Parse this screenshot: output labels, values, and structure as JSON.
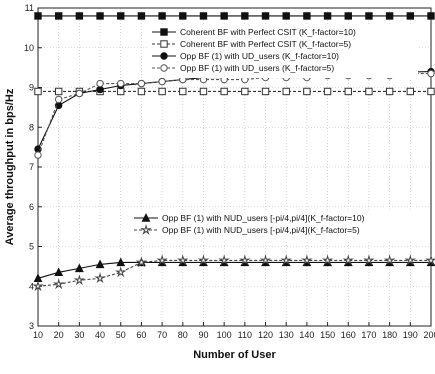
{
  "chart_data": {
    "type": "line",
    "title": "",
    "xlabel": "Number of User",
    "ylabel": "Average throughput in bps/Hz",
    "x": [
      10,
      20,
      30,
      40,
      50,
      60,
      70,
      80,
      90,
      100,
      110,
      120,
      130,
      140,
      150,
      160,
      170,
      180,
      190,
      200
    ],
    "xtick_labels": [
      "10",
      "20",
      "30",
      "40",
      "50",
      "60",
      "70",
      "80",
      "90",
      "100",
      "110",
      "120",
      "130",
      "140",
      "150",
      "160",
      "170",
      "180",
      "190",
      "200"
    ],
    "xlim": [
      10,
      200
    ],
    "ylim": [
      3,
      11
    ],
    "yticks": [
      3,
      4,
      5,
      6,
      7,
      8,
      9,
      10,
      11
    ],
    "grid": true,
    "legend_upper": [
      0,
      1,
      2,
      3
    ],
    "legend_lower": [
      4,
      5
    ],
    "series": [
      {
        "name": "Coherent BF with Perfect CSIT (K_f-factor=10)",
        "color": "#111111",
        "dash": "",
        "marker": "square-filled",
        "values": [
          10.8,
          10.8,
          10.8,
          10.8,
          10.8,
          10.8,
          10.8,
          10.8,
          10.8,
          10.8,
          10.8,
          10.8,
          10.8,
          10.8,
          10.8,
          10.8,
          10.8,
          10.8,
          10.8,
          10.8
        ]
      },
      {
        "name": "Coherent BF with Perfect CSIT (K_f-factor=5)",
        "color": "#333333",
        "dash": "3,2",
        "marker": "square-open",
        "values": [
          8.9,
          8.9,
          8.9,
          8.9,
          8.9,
          8.9,
          8.9,
          8.9,
          8.9,
          8.9,
          8.9,
          8.9,
          8.9,
          8.9,
          8.9,
          8.9,
          8.9,
          8.9,
          8.9,
          8.9
        ]
      },
      {
        "name": "Opp BF (1) with UD_users (K_f-factor=10)",
        "color": "#111111",
        "dash": "",
        "marker": "circle-filled",
        "values": [
          7.45,
          8.55,
          8.85,
          8.95,
          9.05,
          9.1,
          9.15,
          9.2,
          9.25,
          9.25,
          9.3,
          9.3,
          9.32,
          9.33,
          9.35,
          9.36,
          9.37,
          9.38,
          9.39,
          9.4
        ]
      },
      {
        "name": "Opp BF (1) with UD_users (K_f-factor=5)",
        "color": "#555555",
        "dash": "3,2",
        "marker": "circle-open",
        "values": [
          7.3,
          8.7,
          8.85,
          9.1,
          9.1,
          9.1,
          9.15,
          9.2,
          9.2,
          9.2,
          9.2,
          9.25,
          9.25,
          9.25,
          9.3,
          9.3,
          9.3,
          9.3,
          9.35,
          9.35
        ]
      },
      {
        "name": "Opp BF (1) with NUD_users [-pi/4,pi/4](K_f-factor=10)",
        "color": "#111111",
        "dash": "",
        "marker": "triangle-filled",
        "values": [
          4.2,
          4.35,
          4.45,
          4.55,
          4.6,
          4.6,
          4.6,
          4.6,
          4.6,
          4.6,
          4.6,
          4.6,
          4.6,
          4.6,
          4.6,
          4.6,
          4.6,
          4.6,
          4.6,
          4.6
        ]
      },
      {
        "name": "Opp BF (1) with NUD_users [-pi/4,pi/4](K_f-factor=5)",
        "color": "#444444",
        "dash": "3,2",
        "marker": "star-open",
        "values": [
          4.0,
          4.05,
          4.15,
          4.2,
          4.35,
          4.6,
          4.65,
          4.65,
          4.65,
          4.65,
          4.65,
          4.65,
          4.65,
          4.65,
          4.65,
          4.65,
          4.65,
          4.65,
          4.65,
          4.65
        ]
      }
    ]
  }
}
